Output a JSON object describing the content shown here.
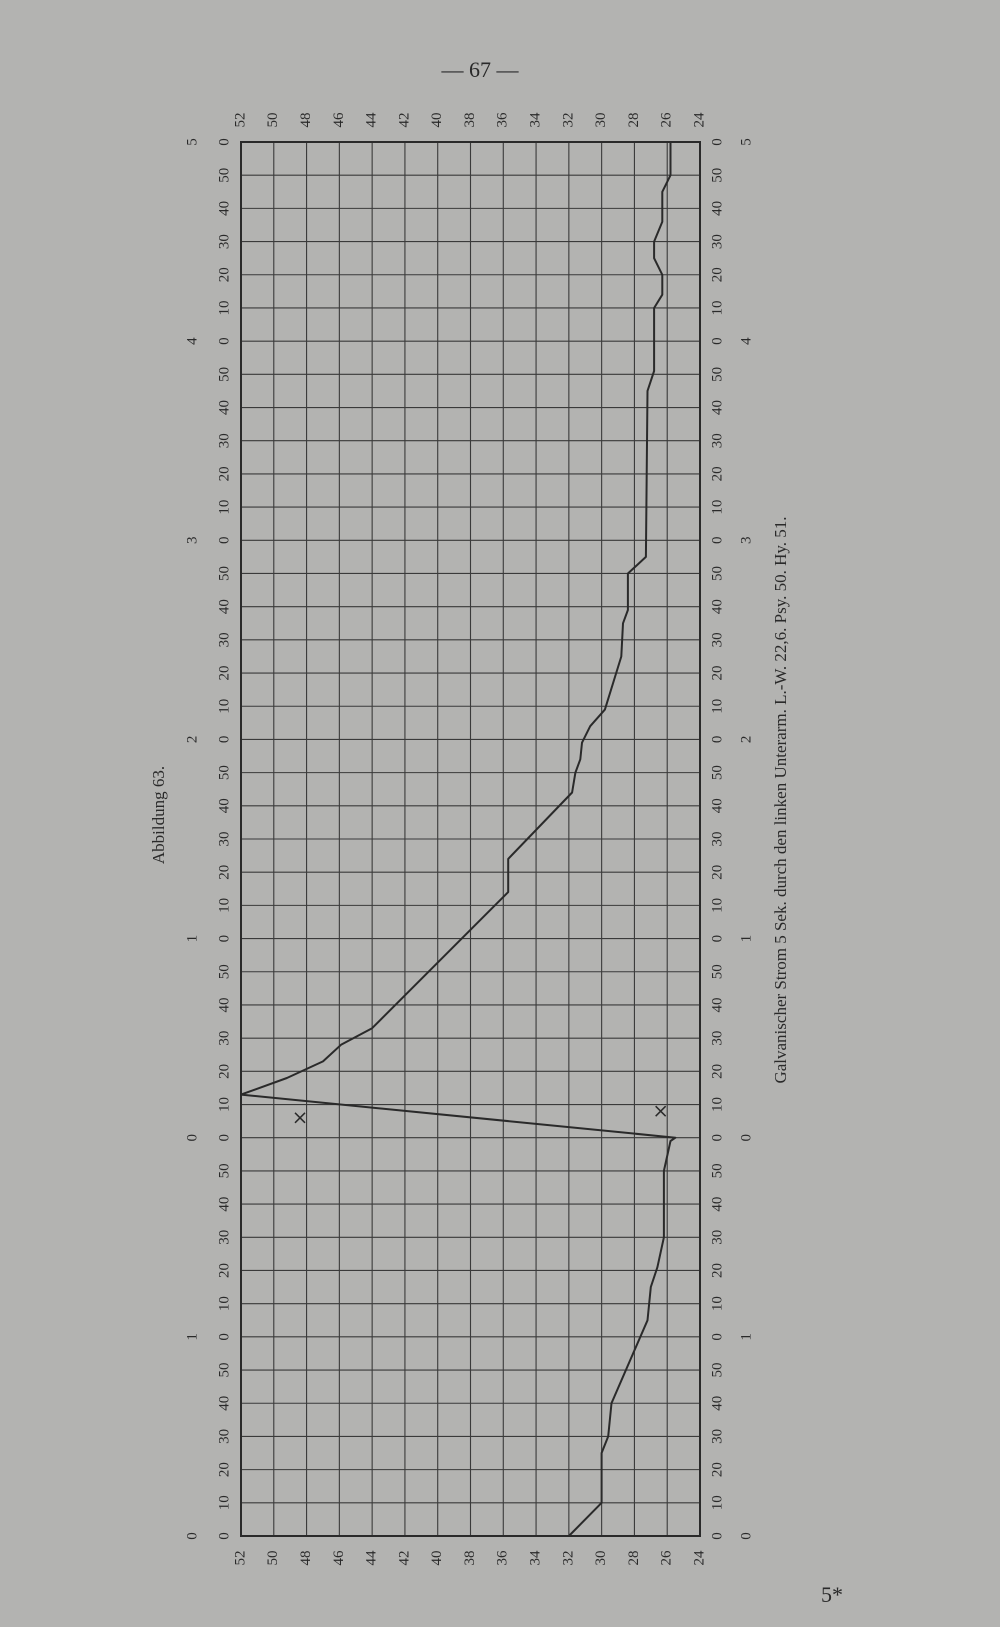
{
  "page_number": "— 67 —",
  "footer": "5*",
  "chart_data": {
    "type": "line",
    "title": "Abbildung 63.",
    "caption": "Galvanischer Strom 5 Sek. durch den linken Unterarm.   L.-W. 22,6.   Psy. 50.   Hy. 51.",
    "color": "#2a2a2a",
    "grid": true,
    "xlim": [
      0,
      420
    ],
    "ylim": [
      24,
      52
    ],
    "yticks": [
      24,
      26,
      28,
      30,
      32,
      34,
      36,
      38,
      40,
      42,
      44,
      46,
      48,
      50,
      52
    ],
    "xticks": [
      0,
      10,
      20,
      30,
      40,
      50,
      {
        "value": 60,
        "label": "0"
      },
      {
        "value": 70,
        "label": "10"
      },
      {
        "value": 80,
        "label": "20"
      },
      {
        "value": 90,
        "label": "30"
      },
      {
        "value": 100,
        "label": "40"
      },
      {
        "value": 110,
        "label": "50"
      },
      {
        "value": 120,
        "label": "0"
      },
      {
        "value": 130,
        "label": "10"
      },
      {
        "value": 140,
        "label": "20"
      },
      {
        "value": 150,
        "label": "30"
      },
      {
        "value": 160,
        "label": "40"
      },
      {
        "value": 170,
        "label": "50"
      },
      {
        "value": 180,
        "label": "0"
      },
      {
        "value": 190,
        "label": "10"
      },
      {
        "value": 200,
        "label": "20"
      },
      {
        "value": 210,
        "label": "30"
      },
      {
        "value": 220,
        "label": "40"
      },
      {
        "value": 230,
        "label": "50"
      },
      {
        "value": 240,
        "label": "0"
      },
      {
        "value": 250,
        "label": "10"
      },
      {
        "value": 260,
        "label": "20"
      },
      {
        "value": 270,
        "label": "30"
      },
      {
        "value": 280,
        "label": "40"
      },
      {
        "value": 290,
        "label": "50"
      },
      {
        "value": 300,
        "label": "0"
      },
      {
        "value": 310,
        "label": "10"
      },
      {
        "value": 320,
        "label": "20"
      },
      {
        "value": 330,
        "label": "30"
      },
      {
        "value": 340,
        "label": "40"
      },
      {
        "value": 350,
        "label": "50"
      },
      {
        "value": 360,
        "label": "0"
      },
      {
        "value": 370,
        "label": "10"
      },
      {
        "value": 380,
        "label": "20"
      },
      {
        "value": 390,
        "label": "30"
      },
      {
        "value": 400,
        "label": "40"
      },
      {
        "value": 410,
        "label": "50"
      },
      {
        "value": 420,
        "label": "0"
      }
    ],
    "minute_ticks": [
      0,
      {
        "value": 60,
        "label": "1"
      },
      {
        "value": 120,
        "label": "0"
      },
      {
        "value": 180,
        "label": "1"
      },
      {
        "value": 240,
        "label": "2"
      },
      {
        "value": 300,
        "label": "3"
      },
      {
        "value": 360,
        "label": "4"
      },
      {
        "value": 420,
        "label": "5"
      }
    ],
    "x": [
      0,
      10,
      25,
      30,
      40,
      65,
      75,
      81,
      90,
      110,
      119,
      120,
      133,
      138,
      143,
      148,
      153,
      194,
      204,
      224,
      230,
      234,
      239,
      244,
      249,
      265,
      275,
      279,
      290,
      295,
      345,
      351,
      370,
      374,
      380,
      385,
      390,
      396,
      405,
      410,
      420
    ],
    "values": [
      32,
      30,
      30,
      29.6,
      29.4,
      27.2,
      27,
      26.6,
      26.2,
      26.2,
      25.8,
      25.5,
      52,
      49.2,
      47,
      45.9,
      44,
      35.7,
      35.7,
      31.8,
      31.6,
      31.3,
      31.2,
      30.7,
      29.8,
      28.8,
      28.7,
      28.4,
      28.4,
      27.3,
      27.2,
      26.8,
      26.8,
      26.3,
      26.3,
      26.8,
      26.8,
      26.3,
      26.3,
      25.8,
      25.8
    ],
    "markers": {
      "x": [
        126,
        128
      ],
      "values": [
        48.4,
        26.4
      ]
    }
  }
}
